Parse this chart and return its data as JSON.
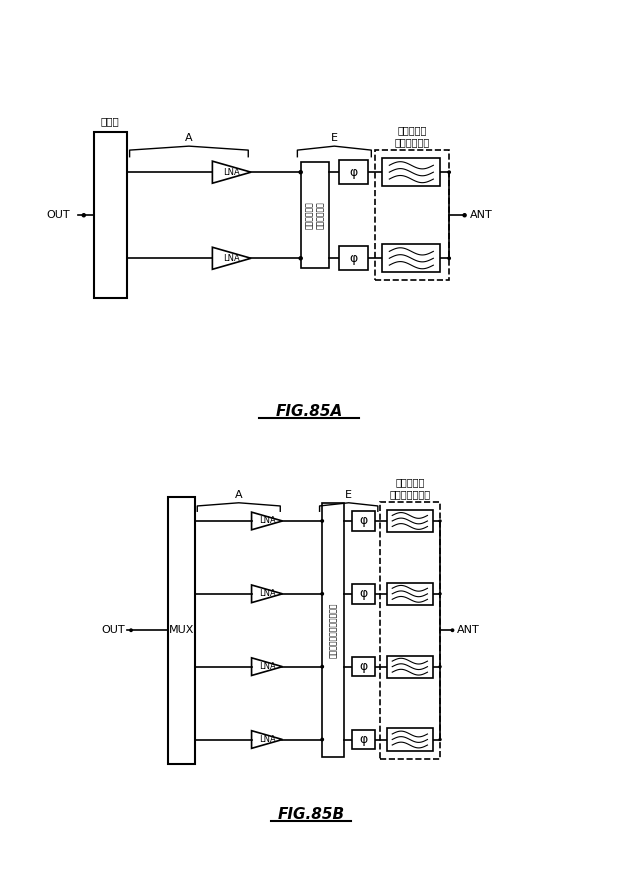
{
  "fig_width": 6.4,
  "fig_height": 8.83,
  "bg_color": "#ffffff",
  "line_color": "#000000",
  "fig85A": {
    "title": "FIG.85A",
    "label_coupler": "結合器",
    "label_out": "OUT",
    "label_ant": "ANT",
    "label_A": "A",
    "label_E": "E",
    "label_filter": "フィルタ／\nダイプレクサ",
    "label_switch": "スイッチング\nネットワーク",
    "label_lna": "LNA",
    "label_phi": "φ"
  },
  "fig85B": {
    "title": "FIG.85B",
    "label_mux": "MUX",
    "label_out": "OUT",
    "label_ant": "ANT",
    "label_A": "A",
    "label_E": "E",
    "label_filter": "フィルタ／\nマルチプレクサ",
    "label_switch": "スイッチングネットワーク",
    "label_lna": "LNA",
    "label_phi": "φ"
  }
}
